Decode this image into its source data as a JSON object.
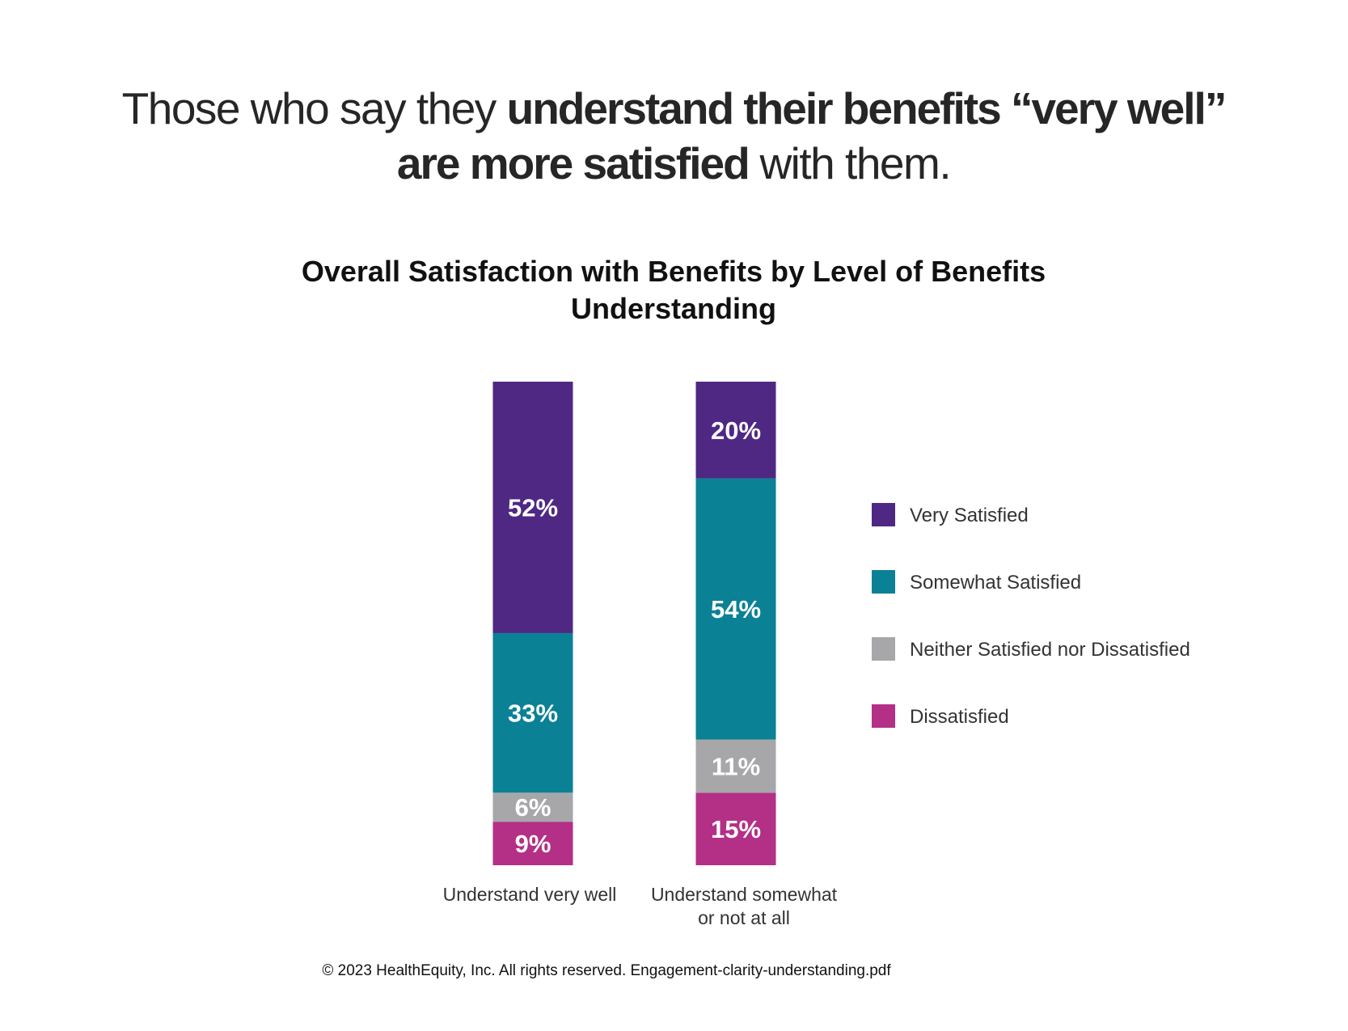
{
  "headline": {
    "part1": "Those who say they ",
    "bold1": "understand their benefits “very well” are more satisfied",
    "part2": " with them."
  },
  "chart_data": {
    "type": "bar",
    "stacked": true,
    "title": "Overall Satisfaction with Benefits by Level of Benefits Understanding",
    "categories": [
      "Understand very well",
      "Understand somewhat or not at all"
    ],
    "series": [
      {
        "name": "Dissatisfied",
        "color": "#b42f86",
        "values": [
          9,
          15
        ],
        "labels": [
          "9%",
          "15%"
        ]
      },
      {
        "name": "Neither Satisfied nor Dissatisfied",
        "color": "#a7a7aa",
        "values": [
          6,
          11
        ],
        "labels": [
          "6%",
          "11%"
        ]
      },
      {
        "name": "Somewhat Satisfied",
        "color": "#0b8195",
        "values": [
          33,
          54
        ],
        "labels": [
          "33%",
          "54%"
        ]
      },
      {
        "name": "Very Satisfied",
        "color": "#4f2884",
        "values": [
          52,
          20
        ],
        "labels": [
          "52%",
          "20%"
        ]
      }
    ],
    "legend": [
      "Very Satisfied",
      "Somewhat Satisfied",
      "Neither Satisfied nor Dissatisfied",
      "Dissatisfied"
    ],
    "ylim": [
      0,
      100
    ],
    "grid": false,
    "legend_position": "right"
  },
  "footer": {
    "text": "© 2023 HealthEquity, Inc. All rights reserved. Engagement-clarity-understanding.pdf"
  }
}
